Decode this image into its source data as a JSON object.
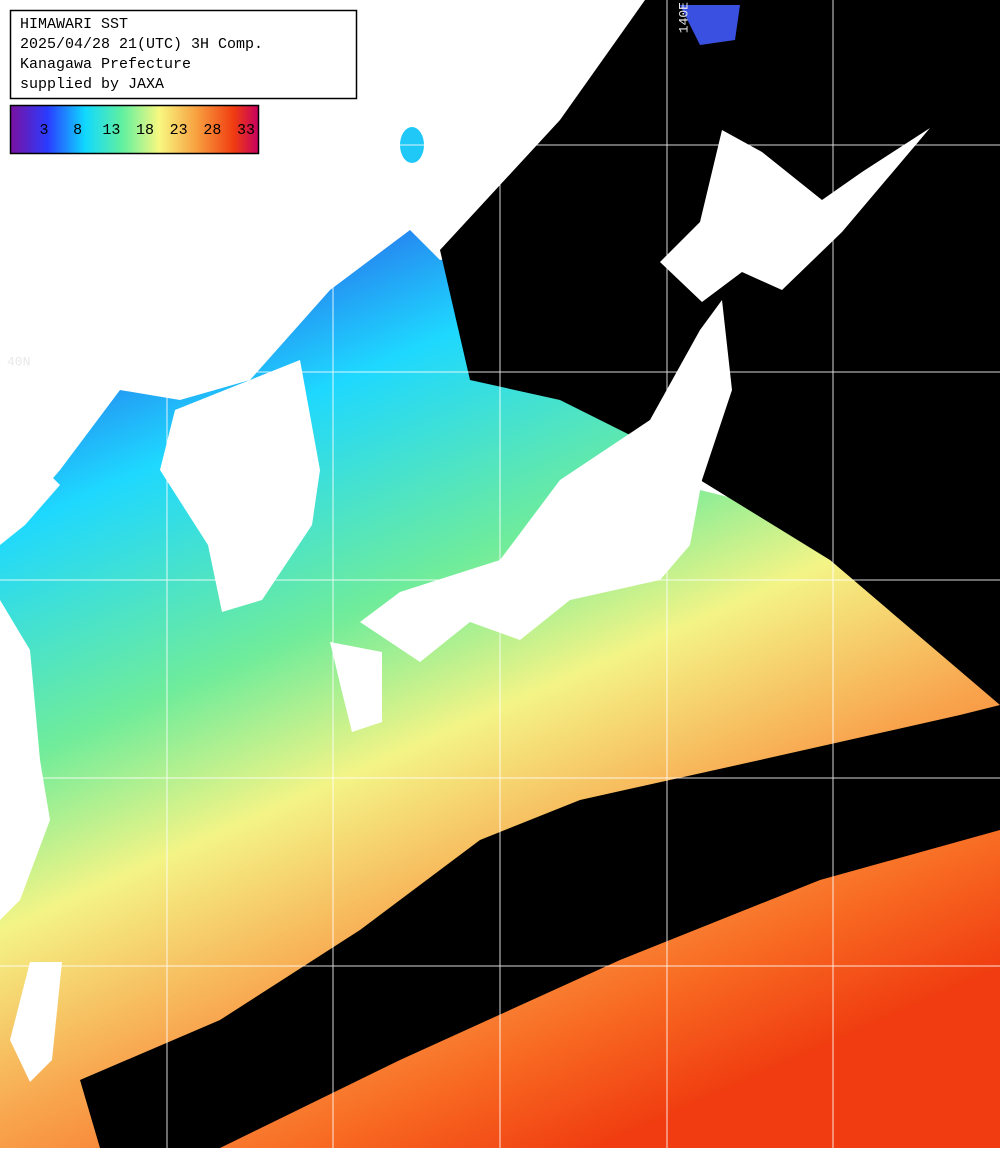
{
  "header": {
    "lines": [
      "HIMAWARI SST",
      "2025/04/28 21(UTC) 3H Comp.",
      "Kanagawa Prefecture",
      "supplied by JAXA"
    ]
  },
  "colorbar": {
    "labels": [
      3,
      8,
      13,
      18,
      23,
      28,
      33
    ]
  },
  "grid_labels": {
    "longitude": "140E",
    "latitude": "40N"
  }
}
